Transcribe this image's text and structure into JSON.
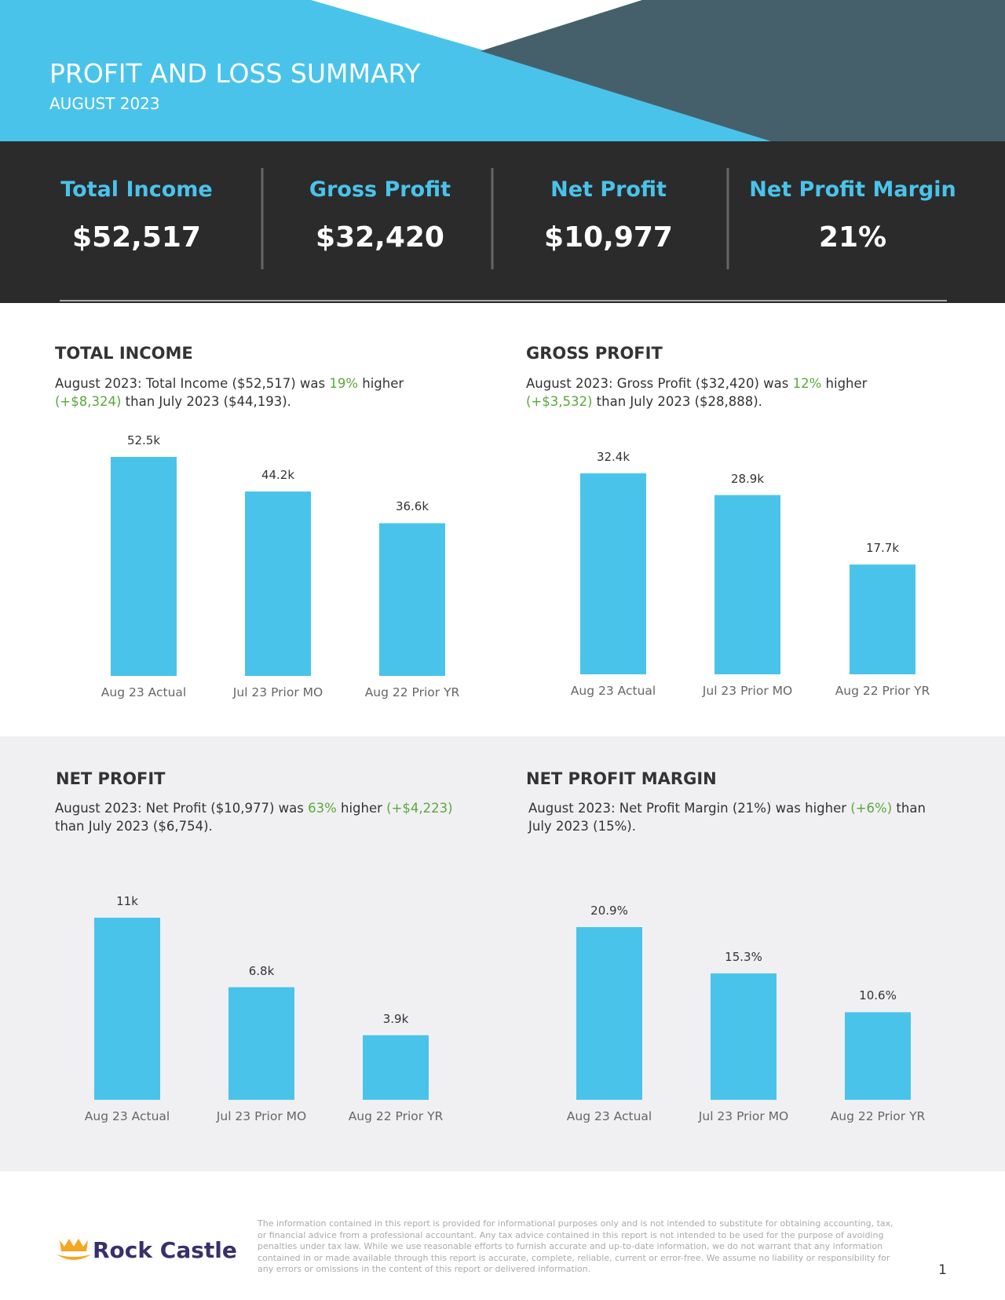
{
  "header": {
    "title": "PROFIT AND LOSS SUMMARY",
    "subtitle": "AUGUST 2023"
  },
  "kpis": [
    {
      "label": "Total Income",
      "value": "$52,517"
    },
    {
      "label": "Gross Profit",
      "value": "$32,420"
    },
    {
      "label": "Net Profit",
      "value": "$10,977"
    },
    {
      "label": "Net Profit Margin",
      "value": "21%"
    }
  ],
  "chart_data": [
    {
      "type": "bar",
      "title": "TOTAL INCOME",
      "description": [
        {
          "text": "August 2023: Total Income ($52,517) was "
        },
        {
          "text": "19%",
          "color": "#5aa83c"
        },
        {
          "text": " higher "
        },
        {
          "text": "(+$8,324)",
          "color": "#5aa83c"
        },
        {
          "text": " than July 2023 ($44,193)."
        }
      ],
      "categories": [
        "Aug 23 Actual",
        "Jul 23 Prior MO",
        "Aug 22 Prior YR"
      ],
      "values": [
        52.5,
        44.2,
        36.6
      ],
      "value_labels": [
        "52.5k",
        "44.2k",
        "36.6k"
      ],
      "color": "#4ac3eb"
    },
    {
      "type": "bar",
      "title": "GROSS PROFIT",
      "description": [
        {
          "text": "August 2023: Gross Profit ($32,420) was "
        },
        {
          "text": "12%",
          "color": "#5aa83c"
        },
        {
          "text": " higher "
        },
        {
          "text": "(+$3,532)",
          "color": "#5aa83c"
        },
        {
          "text": " than July 2023 ($28,888)."
        }
      ],
      "categories": [
        "Aug 23 Actual",
        "Jul 23 Prior MO",
        "Aug 22 Prior YR"
      ],
      "values": [
        32.4,
        28.9,
        17.7
      ],
      "value_labels": [
        "32.4k",
        "28.9k",
        "17.7k"
      ],
      "color": "#4ac3eb"
    },
    {
      "type": "bar",
      "title": "NET PROFIT",
      "description": [
        {
          "text": "August 2023: Net Profit ($10,977) was "
        },
        {
          "text": "63%",
          "color": "#5aa83c"
        },
        {
          "text": " higher "
        },
        {
          "text": "(+$4,223)",
          "color": "#5aa83c"
        },
        {
          "text": " than July 2023 ($6,754)."
        }
      ],
      "categories": [
        "Aug 23 Actual",
        "Jul 23 Prior MO",
        "Aug 22 Prior YR"
      ],
      "values": [
        11,
        6.8,
        3.9
      ],
      "value_labels": [
        "11k",
        "6.8k",
        "3.9k"
      ],
      "color": "#4ac3eb"
    },
    {
      "type": "bar",
      "title": "NET PROFIT MARGIN",
      "description": [
        {
          "text": "August 2023: Net Profit Margin (21%) was higher "
        },
        {
          "text": "(+6%)",
          "color": "#5aa83c"
        },
        {
          "text": " than July 2023 (15%)."
        }
      ],
      "categories": [
        "Aug 23 Actual",
        "Jul 23 Prior MO",
        "Aug 22 Prior YR"
      ],
      "values": [
        20.9,
        15.3,
        10.6
      ],
      "value_labels": [
        "20.9%",
        "15.3%",
        "10.6%"
      ],
      "color": "#4ac3eb"
    }
  ],
  "footer": {
    "brand": "Rock Castle",
    "disclaimer": "The information contained in this report is provided for informational purposes only and is not intended to substitute for obtaining accounting, tax, or financial advice from a professional accountant. Any tax advice contained in this report is not intended to be used for the purpose of avoiding penalties under tax law. While we use reasonable efforts to furnish accurate and up-to-date information, we do not warrant that any information contained in or made available through this report is accurate, complete, reliable, current or error-free. We assume no liability or responsibility for any errors or omissions in the content of this report or delivered information.",
    "page": "1"
  }
}
